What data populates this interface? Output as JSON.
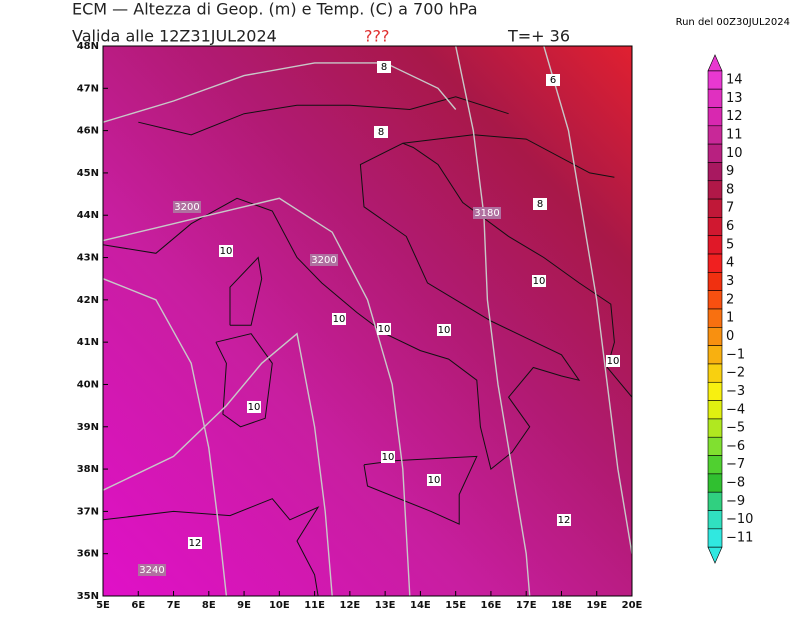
{
  "header": {
    "title": "ECM — Altezza di Geop. (m) e Temp. (C) a 700 hPa",
    "valid": "Valida alle 12Z31JUL2024",
    "flag": "???",
    "step": "T=+ 36",
    "run": "Run del 00Z30JUL2024"
  },
  "axes": {
    "lat": [
      "48N",
      "47N",
      "46N",
      "45N",
      "44N",
      "43N",
      "42N",
      "41N",
      "40N",
      "39N",
      "38N",
      "37N",
      "36N",
      "35N"
    ],
    "lon": [
      "5E",
      "6E",
      "7E",
      "8E",
      "9E",
      "10E",
      "11E",
      "12E",
      "13E",
      "14E",
      "15E",
      "16E",
      "17E",
      "18E",
      "19E",
      "20E"
    ]
  },
  "colorbar": {
    "labels": [
      "14",
      "13",
      "12",
      "11",
      "10",
      "9",
      "8",
      "7",
      "6",
      "5",
      "4",
      "3",
      "2",
      "1",
      "0",
      "−1",
      "−2",
      "−3",
      "−4",
      "−5",
      "−6",
      "−7",
      "−8",
      "−9",
      "−10",
      "−11"
    ],
    "colors": [
      "#e838d0",
      "#e030c0",
      "#d828b0",
      "#c82898",
      "#b82080",
      "#a81860",
      "#b01848",
      "#c01838",
      "#d01830",
      "#e01828",
      "#f02020",
      "#f03010",
      "#f85010",
      "#f87010",
      "#f89010",
      "#f8b010",
      "#f8d010",
      "#f8f010",
      "#e0f010",
      "#b0e820",
      "#80e030",
      "#50d030",
      "#30c030",
      "#30d080",
      "#30e0c0",
      "#30e8e0"
    ]
  },
  "contour_labels": [
    "8",
    "8",
    "8",
    "6",
    "3200",
    "3200",
    "3180",
    "10",
    "10",
    "10",
    "10",
    "10",
    "10",
    "10",
    "10",
    "10",
    "12",
    "12",
    "3240"
  ]
}
